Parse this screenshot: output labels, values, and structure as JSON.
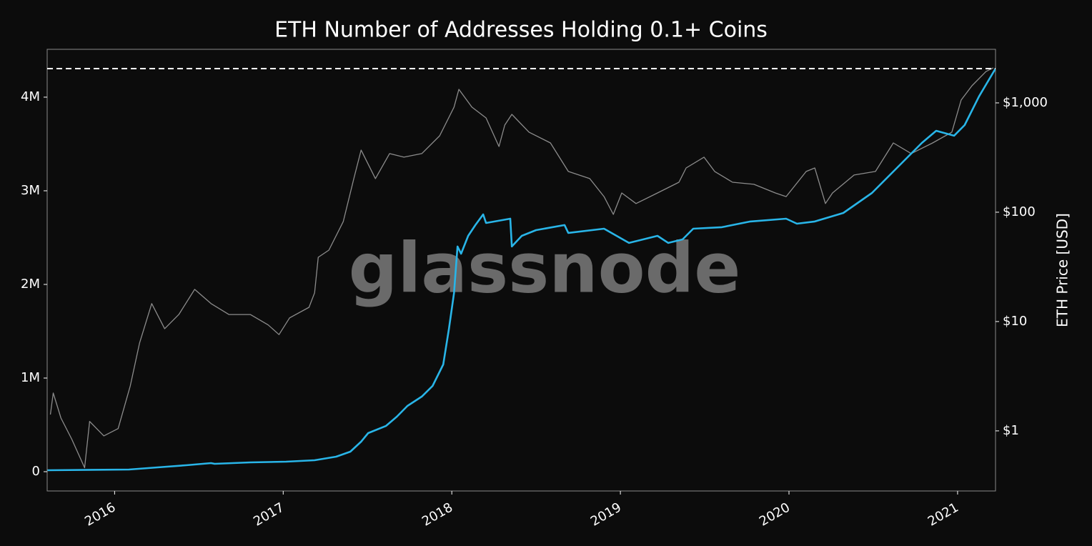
{
  "chart_data": {
    "type": "line",
    "title": "ETH Number of Addresses Holding 0.1+ Coins",
    "watermark": "glassnode",
    "y2label": "ETH Price [USD]",
    "xlim": [
      2015.6,
      2021.225
    ],
    "xticks": [
      2016,
      2017,
      2018,
      2019,
      2020,
      2021
    ],
    "ylim": [
      -206000,
      4511000
    ],
    "yticks": [
      0,
      {
        "value": 1000000,
        "label": "1M"
      },
      {
        "value": 2000000,
        "label": "2M"
      },
      {
        "value": 3000000,
        "label": "3M"
      },
      {
        "value": 4000000,
        "label": "4M"
      }
    ],
    "y2lim": [
      0.282,
      3090
    ],
    "y2scale": "log",
    "y2ticks": [
      {
        "value": 1,
        "label": "$1"
      },
      {
        "value": 10,
        "label": "$10"
      },
      {
        "value": 100,
        "label": "$100"
      },
      {
        "value": 1000,
        "label": "$1,000"
      }
    ],
    "grid": false,
    "reference_line": {
      "value": 4305000,
      "color": "#ffffff"
    },
    "series": [
      {
        "color": "#8c8c8c",
        "axis": "y2",
        "x": [
          2015.619,
          2015.636,
          2015.682,
          2015.746,
          2015.822,
          2015.852,
          2015.936,
          2016.021,
          2016.093,
          2016.148,
          2016.22,
          2016.297,
          2016.381,
          2016.475,
          2016.572,
          2016.678,
          2016.805,
          2016.911,
          2016.975,
          2017.038,
          2017.153,
          2017.186,
          2017.208,
          2017.271,
          2017.356,
          2017.419,
          2017.462,
          2017.547,
          2017.631,
          2017.716,
          2017.822,
          2017.928,
          2018.013,
          2018.042,
          2018.119,
          2018.203,
          2018.28,
          2018.314,
          2018.356,
          2018.458,
          2018.585,
          2018.691,
          2018.818,
          2018.903,
          2018.958,
          2019.008,
          2019.093,
          2019.22,
          2019.347,
          2019.39,
          2019.496,
          2019.559,
          2019.665,
          2019.792,
          2019.919,
          2019.983,
          2020.102,
          2020.153,
          2020.216,
          2020.258,
          2020.386,
          2020.513,
          2020.619,
          2020.725,
          2020.852,
          2020.966,
          2021.021,
          2021.085,
          2021.169,
          2021.212
        ],
        "values": [
          1.41,
          2.22,
          1.31,
          0.84,
          0.46,
          1.22,
          0.9,
          1.05,
          2.58,
          6.37,
          14.6,
          8.6,
          11.6,
          19.7,
          14.6,
          11.6,
          11.6,
          9.3,
          7.6,
          10.8,
          13.5,
          18.3,
          38.7,
          45,
          82,
          203,
          370,
          203,
          344,
          319,
          344,
          500,
          914,
          1330,
          914,
          729,
          399,
          627,
          785,
          540,
          430,
          236,
          203,
          139,
          95.5,
          150,
          120,
          150,
          188,
          254,
          319,
          236,
          188,
          180,
          150,
          139,
          236,
          254,
          120,
          150,
          219,
          236,
          430,
          344,
          430,
          540,
          1062,
          1435,
          1940,
          2090
        ]
      },
      {
        "color": "#29b5e8",
        "axis": "y",
        "x": [
          2015.602,
          2016.085,
          2016.254,
          2016.424,
          2016.572,
          2016.593,
          2016.805,
          2017.017,
          2017.186,
          2017.314,
          2017.398,
          2017.462,
          2017.504,
          2017.61,
          2017.674,
          2017.737,
          2017.822,
          2017.886,
          2017.949,
          2017.983,
          2018.013,
          2018.034,
          2018.055,
          2018.097,
          2018.14,
          2018.186,
          2018.203,
          2018.347,
          2018.356,
          2018.415,
          2018.5,
          2018.669,
          2018.691,
          2018.903,
          2019.051,
          2019.22,
          2019.284,
          2019.369,
          2019.432,
          2019.602,
          2019.771,
          2019.983,
          2020.047,
          2020.153,
          2020.322,
          2020.492,
          2020.64,
          2020.788,
          2020.873,
          2020.979,
          2021.042,
          2021.127,
          2021.225
        ],
        "values": [
          15000,
          23000,
          46000,
          69000,
          92000,
          84000,
          99000,
          107000,
          122000,
          160000,
          214000,
          321000,
          412000,
          489000,
          588000,
          702000,
          802000,
          916000,
          1145000,
          1527000,
          1908000,
          2405000,
          2328000,
          2519000,
          2634000,
          2748000,
          2656000,
          2702000,
          2405000,
          2519000,
          2580000,
          2634000,
          2550000,
          2595000,
          2443000,
          2519000,
          2443000,
          2481000,
          2595000,
          2611000,
          2672000,
          2702000,
          2649000,
          2672000,
          2763000,
          2977000,
          3244000,
          3511000,
          3641000,
          3588000,
          3702000,
          4008000,
          4305000
        ]
      }
    ]
  }
}
